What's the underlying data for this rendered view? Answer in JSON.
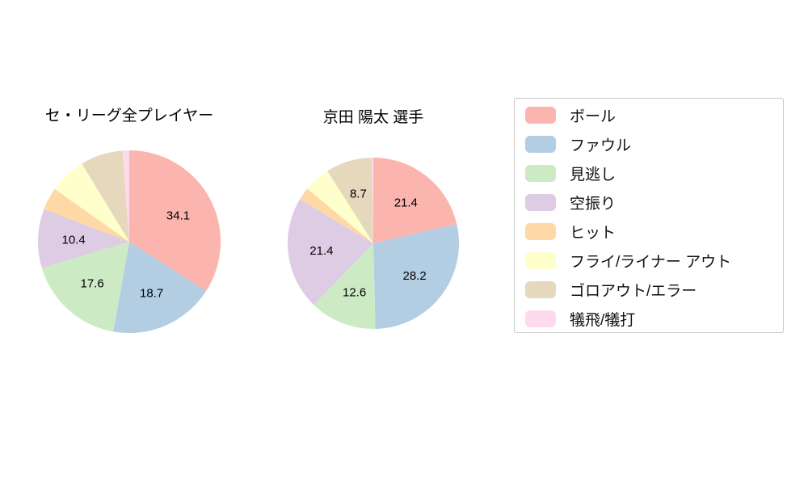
{
  "chart_data": [
    {
      "type": "pie",
      "title": "セ・リーグ全プレイヤー",
      "start_angle": "top",
      "direction": "clockwise",
      "label_color": "#000000",
      "slices": [
        {
          "name": "ボール",
          "color": "#fbb4ae",
          "value": 34.1,
          "label": "34.1"
        },
        {
          "name": "ファウル",
          "color": "#b3cde3",
          "value": 18.7,
          "label": "18.7"
        },
        {
          "name": "見逃し",
          "color": "#ccebc5",
          "value": 17.6,
          "label": "17.6"
        },
        {
          "name": "空振り",
          "color": "#decbe4",
          "value": 10.4,
          "label": "10.4"
        },
        {
          "name": "ヒット",
          "color": "#fed9a6",
          "value": 4.0,
          "label": ""
        },
        {
          "name": "フライ/ライナー アウト",
          "color": "#ffffcc",
          "value": 6.5,
          "label": ""
        },
        {
          "name": "ゴロアウト/エラー",
          "color": "#e5d8bd",
          "value": 7.5,
          "label": ""
        },
        {
          "name": "犠飛/犠打",
          "color": "#fddaec",
          "value": 1.2,
          "label": ""
        }
      ]
    },
    {
      "type": "pie",
      "title": "京田 陽太  選手",
      "start_angle": "top",
      "direction": "clockwise",
      "label_color": "#000000",
      "slices": [
        {
          "name": "ボール",
          "color": "#fbb4ae",
          "value": 21.4,
          "label": "21.4"
        },
        {
          "name": "ファウル",
          "color": "#b3cde3",
          "value": 28.2,
          "label": "28.2"
        },
        {
          "name": "見逃し",
          "color": "#ccebc5",
          "value": 12.6,
          "label": "12.6"
        },
        {
          "name": "空振り",
          "color": "#decbe4",
          "value": 21.4,
          "label": "21.4"
        },
        {
          "name": "ヒット",
          "color": "#fed9a6",
          "value": 2.4,
          "label": ""
        },
        {
          "name": "フライ/ライナー アウト",
          "color": "#ffffcc",
          "value": 5.0,
          "label": ""
        },
        {
          "name": "ゴロアウト/エラー",
          "color": "#e5d8bd",
          "value": 8.7,
          "label": "8.7"
        },
        {
          "name": "犠飛/犠打",
          "color": "#fddaec",
          "value": 0.3,
          "label": ""
        }
      ]
    }
  ],
  "legend": {
    "items": [
      {
        "label": "ボール",
        "color": "#fbb4ae"
      },
      {
        "label": "ファウル",
        "color": "#b3cde3"
      },
      {
        "label": "見逃し",
        "color": "#ccebc5"
      },
      {
        "label": "空振り",
        "color": "#decbe4"
      },
      {
        "label": "ヒット",
        "color": "#fed9a6"
      },
      {
        "label": "フライ/ライナー アウト",
        "color": "#ffffcc"
      },
      {
        "label": "ゴロアウト/エラー",
        "color": "#e5d8bd"
      },
      {
        "label": "犠飛/犠打",
        "color": "#fddaec"
      }
    ]
  }
}
